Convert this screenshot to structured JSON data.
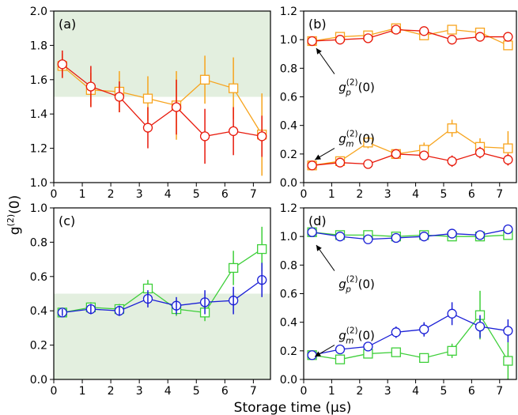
{
  "figure": {
    "xlabel": "Storage time (μs)",
    "ylabel": "g(2)(0)",
    "shade_color": "#e3efdf",
    "series_colors": {
      "red": "#e8190b",
      "orange": "#f7a41d",
      "blue": "#1a1fd6",
      "green": "#3ecf3a"
    }
  },
  "chart_data": [
    {
      "type": "scatter",
      "panel": "(a)",
      "xlim": [
        0,
        7.6
      ],
      "ylim": [
        1.0,
        2.0
      ],
      "xticks": [
        0,
        1,
        2,
        3,
        4,
        5,
        6,
        7
      ],
      "yticks": [
        1.0,
        1.2,
        1.4,
        1.6,
        1.8,
        2.0
      ],
      "shade": [
        1.5,
        2.0
      ],
      "annotations": [],
      "series": [
        {
          "color_key": "orange",
          "marker": "square",
          "x": [
            0.3,
            1.3,
            2.3,
            3.3,
            4.3,
            5.3,
            6.3,
            7.3
          ],
          "y": [
            1.68,
            1.54,
            1.53,
            1.49,
            1.45,
            1.6,
            1.55,
            1.28
          ],
          "err": [
            0.07,
            0.1,
            0.12,
            0.13,
            0.2,
            0.14,
            0.18,
            0.24
          ]
        },
        {
          "color_key": "red",
          "marker": "circle",
          "x": [
            0.3,
            1.3,
            2.3,
            3.3,
            4.3,
            5.3,
            6.3,
            7.3
          ],
          "y": [
            1.69,
            1.56,
            1.5,
            1.32,
            1.44,
            1.27,
            1.3,
            1.27
          ],
          "err": [
            0.08,
            0.12,
            0.09,
            0.12,
            0.16,
            0.16,
            0.14,
            0.12
          ]
        }
      ]
    },
    {
      "type": "scatter",
      "panel": "(b)",
      "xlim": [
        0,
        7.6
      ],
      "ylim": [
        0,
        1.2
      ],
      "xticks": [
        0,
        1,
        2,
        3,
        4,
        5,
        6,
        7
      ],
      "yticks": [
        0.0,
        0.2,
        0.4,
        0.6,
        0.8,
        1.0,
        1.2
      ],
      "shade": null,
      "annotations": [
        {
          "base": "g",
          "sub": "p",
          "sup": "(2)",
          "tail": "(0)",
          "text_x": 1.25,
          "text_y": 0.64,
          "arrow_from": [
            1.1,
            0.76
          ],
          "arrow_to": [
            0.45,
            0.94
          ]
        },
        {
          "base": "g",
          "sub": "m",
          "sup": "(2)",
          "tail": "(0)",
          "text_x": 1.25,
          "text_y": 0.28,
          "arrow_from": [
            1.1,
            0.24
          ],
          "arrow_to": [
            0.4,
            0.16
          ]
        }
      ],
      "series": [
        {
          "color_key": "orange",
          "marker": "square",
          "x": [
            0.3,
            1.3,
            2.3,
            3.3,
            4.3,
            5.3,
            6.3,
            7.3
          ],
          "y": [
            0.99,
            1.02,
            1.03,
            1.08,
            1.03,
            1.07,
            1.05,
            0.96
          ],
          "err": [
            0.02,
            0.02,
            0.02,
            0.02,
            0.02,
            0.02,
            0.02,
            0.02
          ]
        },
        {
          "color_key": "red",
          "marker": "circle",
          "x": [
            0.3,
            1.3,
            2.3,
            3.3,
            4.3,
            5.3,
            6.3,
            7.3
          ],
          "y": [
            0.99,
            1.0,
            1.01,
            1.07,
            1.06,
            1.0,
            1.02,
            1.02
          ],
          "err": [
            0.02,
            0.02,
            0.02,
            0.02,
            0.02,
            0.02,
            0.02,
            0.02
          ]
        },
        {
          "color_key": "orange",
          "marker": "square",
          "x": [
            0.3,
            1.3,
            2.3,
            3.3,
            4.3,
            5.3,
            6.3,
            7.3
          ],
          "y": [
            0.12,
            0.15,
            0.28,
            0.2,
            0.23,
            0.38,
            0.25,
            0.24
          ],
          "err": [
            0.02,
            0.02,
            0.04,
            0.02,
            0.05,
            0.06,
            0.06,
            0.12
          ]
        },
        {
          "color_key": "red",
          "marker": "circle",
          "x": [
            0.3,
            1.3,
            2.3,
            3.3,
            4.3,
            5.3,
            6.3,
            7.3
          ],
          "y": [
            0.12,
            0.14,
            0.13,
            0.2,
            0.19,
            0.15,
            0.21,
            0.16
          ],
          "err": [
            0.02,
            0.02,
            0.02,
            0.02,
            0.03,
            0.04,
            0.04,
            0.04
          ]
        }
      ]
    },
    {
      "type": "scatter",
      "panel": "(c)",
      "xlim": [
        0,
        7.6
      ],
      "ylim": [
        0,
        1.0
      ],
      "xticks": [
        0,
        1,
        2,
        3,
        4,
        5,
        6,
        7
      ],
      "yticks": [
        0.0,
        0.2,
        0.4,
        0.6,
        0.8,
        1.0
      ],
      "shade": [
        0,
        0.5
      ],
      "annotations": [],
      "series": [
        {
          "color_key": "green",
          "marker": "square",
          "x": [
            0.3,
            1.3,
            2.3,
            3.3,
            4.3,
            5.3,
            6.3,
            7.3
          ],
          "y": [
            0.39,
            0.42,
            0.41,
            0.53,
            0.41,
            0.39,
            0.65,
            0.76
          ],
          "err": [
            0.02,
            0.03,
            0.03,
            0.05,
            0.04,
            0.05,
            0.1,
            0.13
          ]
        },
        {
          "color_key": "blue",
          "marker": "circle",
          "x": [
            0.3,
            1.3,
            2.3,
            3.3,
            4.3,
            5.3,
            6.3,
            7.3
          ],
          "y": [
            0.39,
            0.41,
            0.4,
            0.47,
            0.43,
            0.45,
            0.46,
            0.58
          ]
        },
        {
          "color_key": "blue",
          "marker": "none",
          "x": [
            0.3,
            1.3,
            2.3,
            3.3,
            4.3,
            5.3,
            6.3,
            7.3
          ],
          "y": [
            0.39,
            0.41,
            0.4,
            0.47,
            0.43,
            0.45,
            0.46,
            0.58
          ],
          "err": [
            0.02,
            0.03,
            0.03,
            0.05,
            0.05,
            0.07,
            0.08,
            0.1
          ]
        }
      ]
    },
    {
      "type": "scatter",
      "panel": "(d)",
      "xlim": [
        0,
        7.6
      ],
      "ylim": [
        0,
        1.2
      ],
      "xticks": [
        0,
        1,
        2,
        3,
        4,
        5,
        6,
        7
      ],
      "yticks": [
        0.0,
        0.2,
        0.4,
        0.6,
        0.8,
        1.0,
        1.2
      ],
      "shade": null,
      "annotations": [
        {
          "base": "g",
          "sub": "p",
          "sup": "(2)",
          "tail": "(0)",
          "text_x": 1.25,
          "text_y": 0.64,
          "arrow_from": [
            1.1,
            0.76
          ],
          "arrow_to": [
            0.45,
            0.94
          ]
        },
        {
          "base": "g",
          "sub": "m",
          "sup": "(2)",
          "tail": "(0)",
          "text_x": 1.25,
          "text_y": 0.28,
          "arrow_from": [
            1.1,
            0.24
          ],
          "arrow_to": [
            0.4,
            0.16
          ]
        }
      ],
      "series": [
        {
          "color_key": "green",
          "marker": "square",
          "x": [
            0.3,
            1.3,
            2.3,
            3.3,
            4.3,
            5.3,
            6.3,
            7.3
          ],
          "y": [
            1.03,
            1.01,
            1.01,
            1.0,
            1.01,
            1.0,
            1.0,
            1.01
          ],
          "err": [
            0.01,
            0.01,
            0.01,
            0.01,
            0.01,
            0.01,
            0.01,
            0.01
          ]
        },
        {
          "color_key": "blue",
          "marker": "circle",
          "x": [
            0.3,
            1.3,
            2.3,
            3.3,
            4.3,
            5.3,
            6.3,
            7.3
          ],
          "y": [
            1.03,
            1.0,
            0.98,
            0.99,
            1.0,
            1.02,
            1.01,
            1.05
          ],
          "err": [
            0.02,
            0.02,
            0.02,
            0.02,
            0.02,
            0.02,
            0.02,
            0.02
          ]
        },
        {
          "color_key": "green",
          "marker": "square",
          "x": [
            0.3,
            1.3,
            2.3,
            3.3,
            4.3,
            5.3,
            6.3,
            7.3
          ],
          "y": [
            0.17,
            0.14,
            0.18,
            0.19,
            0.15,
            0.2,
            0.45,
            0.13
          ],
          "err": [
            0.02,
            0.02,
            0.03,
            0.02,
            0.03,
            0.05,
            0.17,
            0.13
          ]
        },
        {
          "color_key": "blue",
          "marker": "circle",
          "x": [
            0.3,
            1.3,
            2.3,
            3.3,
            4.3,
            5.3,
            6.3,
            7.3
          ],
          "y": [
            0.17,
            0.21,
            0.23,
            0.33,
            0.35,
            0.46,
            0.37,
            0.34
          ],
          "err": [
            0.02,
            0.02,
            0.03,
            0.04,
            0.05,
            0.08,
            0.08,
            0.08
          ]
        }
      ]
    }
  ]
}
